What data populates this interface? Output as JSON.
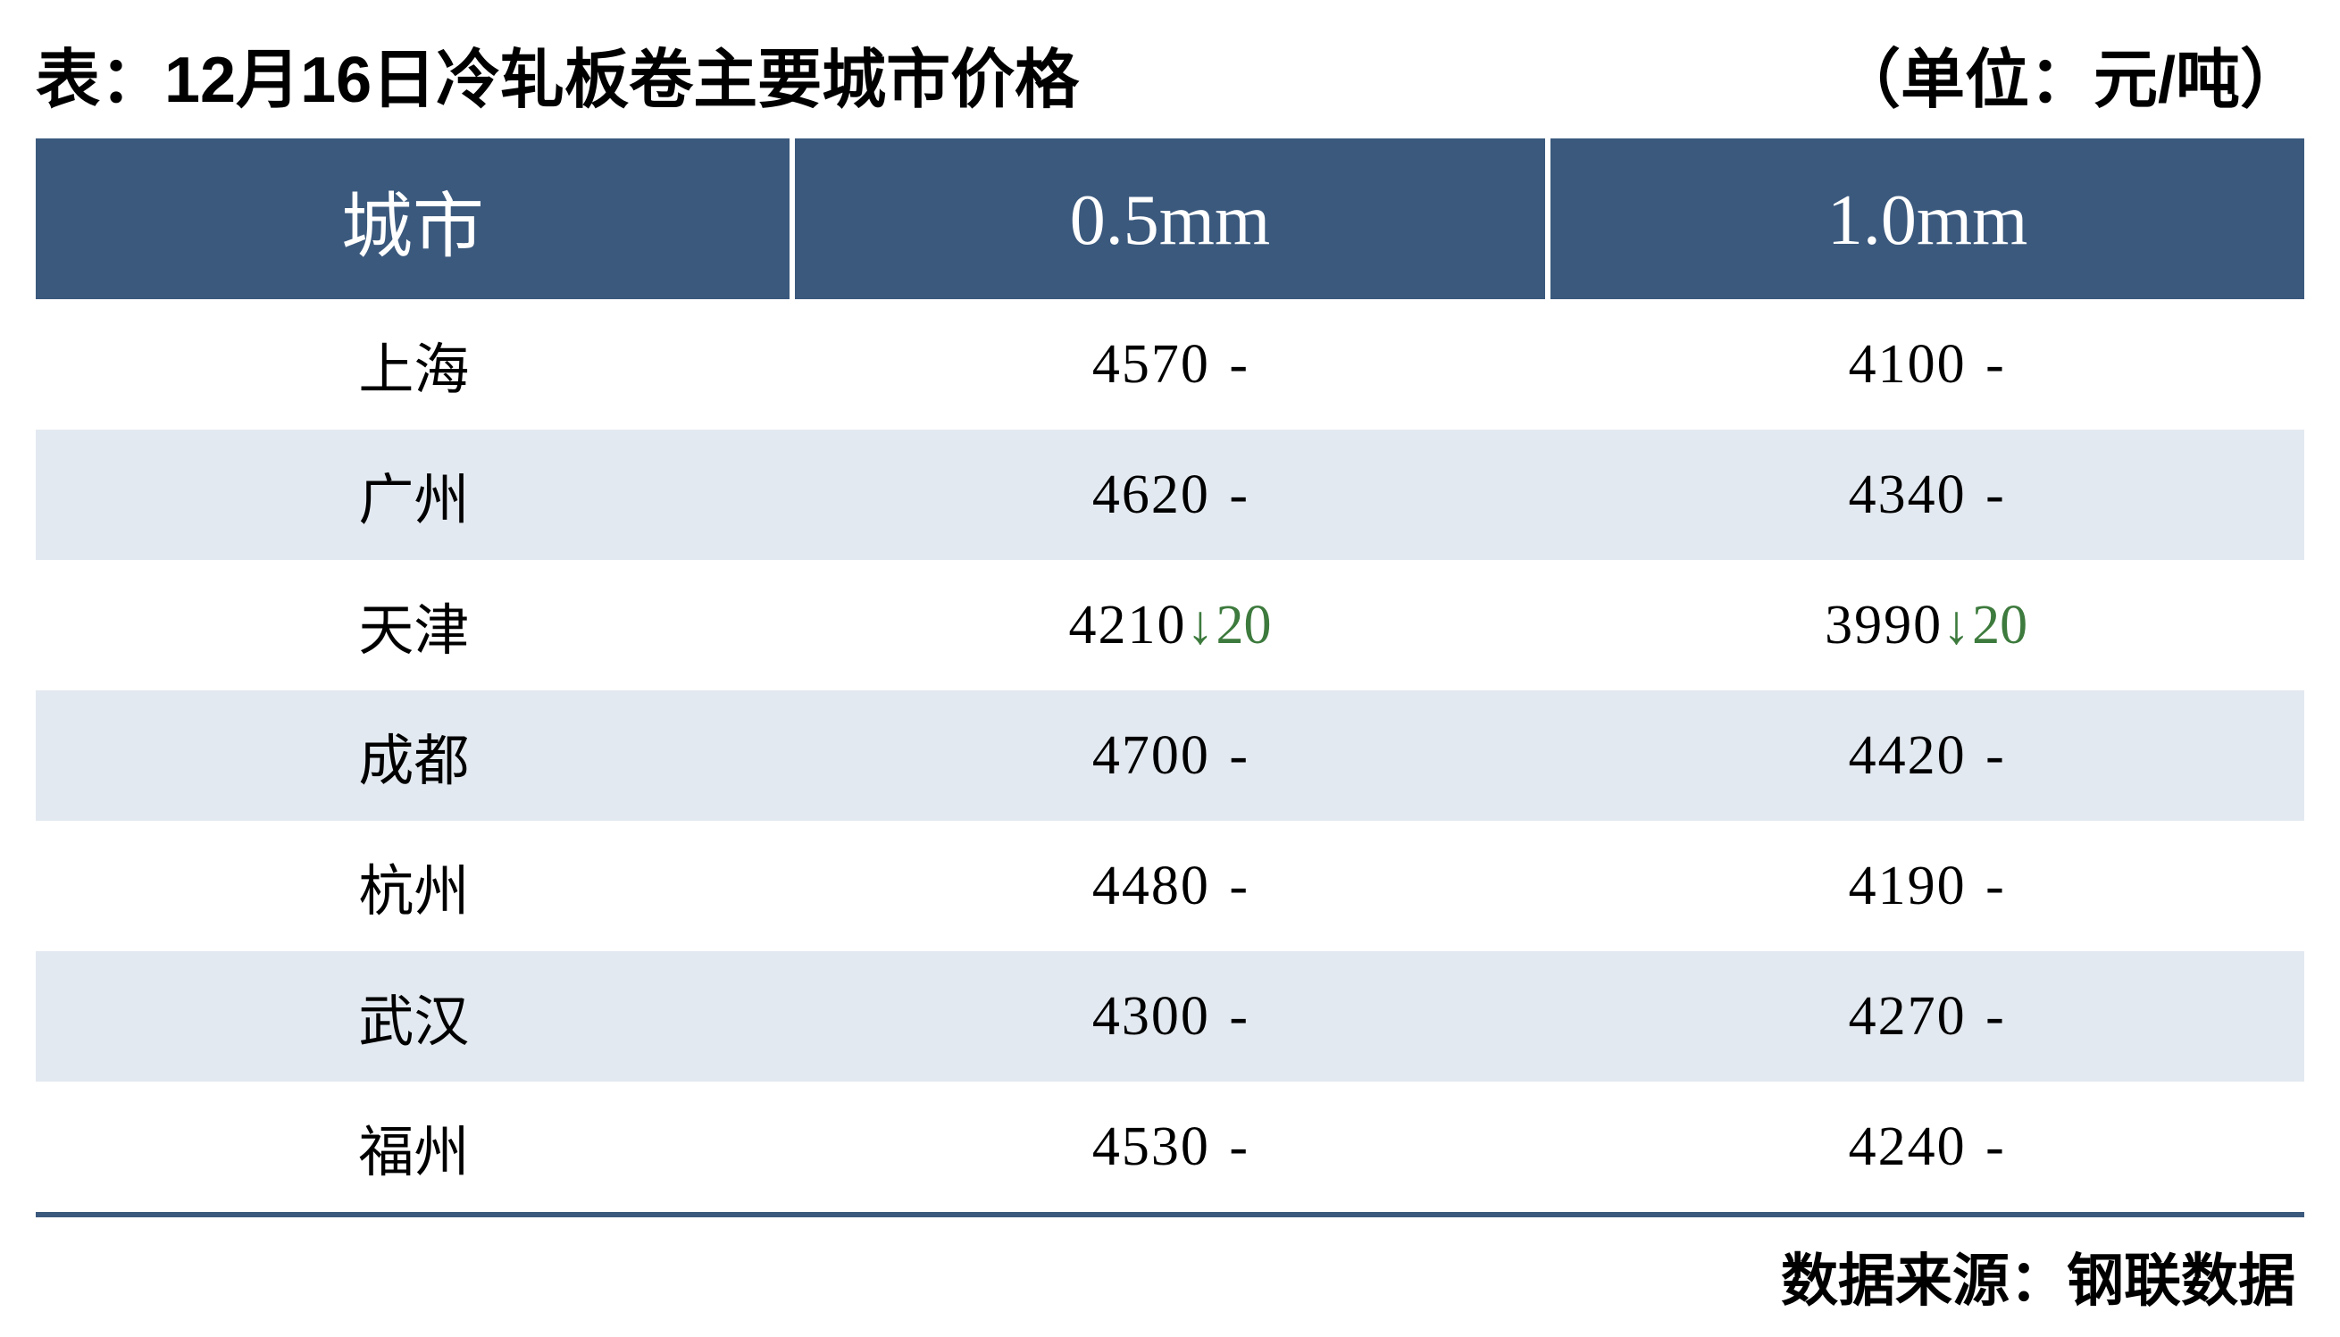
{
  "header": {
    "title": "表：12月16日冷轧板卷主要城市价格",
    "unit": "（单位：元/吨）"
  },
  "table": {
    "type": "table",
    "columns": [
      "城市",
      "0.5mm",
      "1.0mm"
    ],
    "column_widths_pct": [
      33.3,
      33.3,
      33.3
    ],
    "header_bg_color": "#3b597d",
    "header_text_color": "#ffffff",
    "header_fontsize_pt": 60,
    "body_fontsize_pt": 46,
    "row_alt_bg_color": "#e3e9f0",
    "row_bg_color": "#ffffff",
    "border_color": "#3b597d",
    "cell_text_color": "#000000",
    "change_down_color": "#3d7a3d",
    "rows": [
      {
        "city": "上海",
        "col_05": {
          "price": "4570",
          "change_dir": "none",
          "change_val": "-"
        },
        "col_10": {
          "price": "4100",
          "change_dir": "none",
          "change_val": "-"
        }
      },
      {
        "city": "广州",
        "col_05": {
          "price": "4620",
          "change_dir": "none",
          "change_val": "-"
        },
        "col_10": {
          "price": "4340",
          "change_dir": "none",
          "change_val": "-"
        }
      },
      {
        "city": "天津",
        "col_05": {
          "price": "4210",
          "change_dir": "down",
          "change_val": "20"
        },
        "col_10": {
          "price": "3990",
          "change_dir": "down",
          "change_val": "20"
        }
      },
      {
        "city": "成都",
        "col_05": {
          "price": "4700",
          "change_dir": "none",
          "change_val": "-"
        },
        "col_10": {
          "price": "4420",
          "change_dir": "none",
          "change_val": "-"
        }
      },
      {
        "city": "杭州",
        "col_05": {
          "price": "4480",
          "change_dir": "none",
          "change_val": "-"
        },
        "col_10": {
          "price": "4190",
          "change_dir": "none",
          "change_val": "-"
        }
      },
      {
        "city": "武汉",
        "col_05": {
          "price": "4300",
          "change_dir": "none",
          "change_val": "-"
        },
        "col_10": {
          "price": "4270",
          "change_dir": "none",
          "change_val": "-"
        }
      },
      {
        "city": "福州",
        "col_05": {
          "price": "4530",
          "change_dir": "none",
          "change_val": "-"
        },
        "col_10": {
          "price": "4240",
          "change_dir": "none",
          "change_val": "-"
        }
      }
    ]
  },
  "footer": {
    "source": "数据来源：钢联数据"
  },
  "glyphs": {
    "arrow_down": "↓"
  }
}
